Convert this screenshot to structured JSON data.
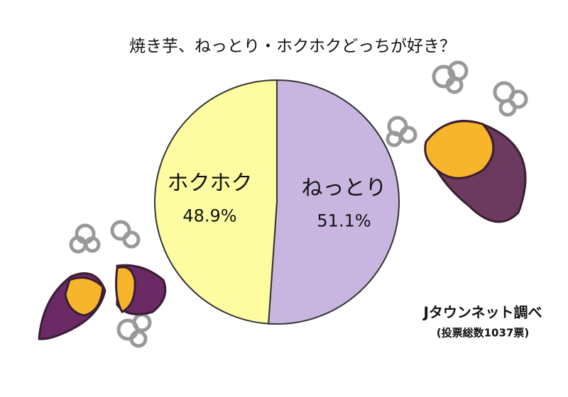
{
  "chart_data": {
    "type": "pie",
    "title": "焼き芋、ねっとり・ホクホクどっちが好き？",
    "categories": [
      "ねっとり",
      "ホクホク"
    ],
    "values": [
      51.1,
      48.9
    ],
    "value_labels": [
      "51.1%",
      "48.9%"
    ],
    "colors": [
      "#c9b6e0",
      "#fdfca0"
    ],
    "source": "Jタウンネット調べ",
    "note": "(投票総数1037票)"
  }
}
